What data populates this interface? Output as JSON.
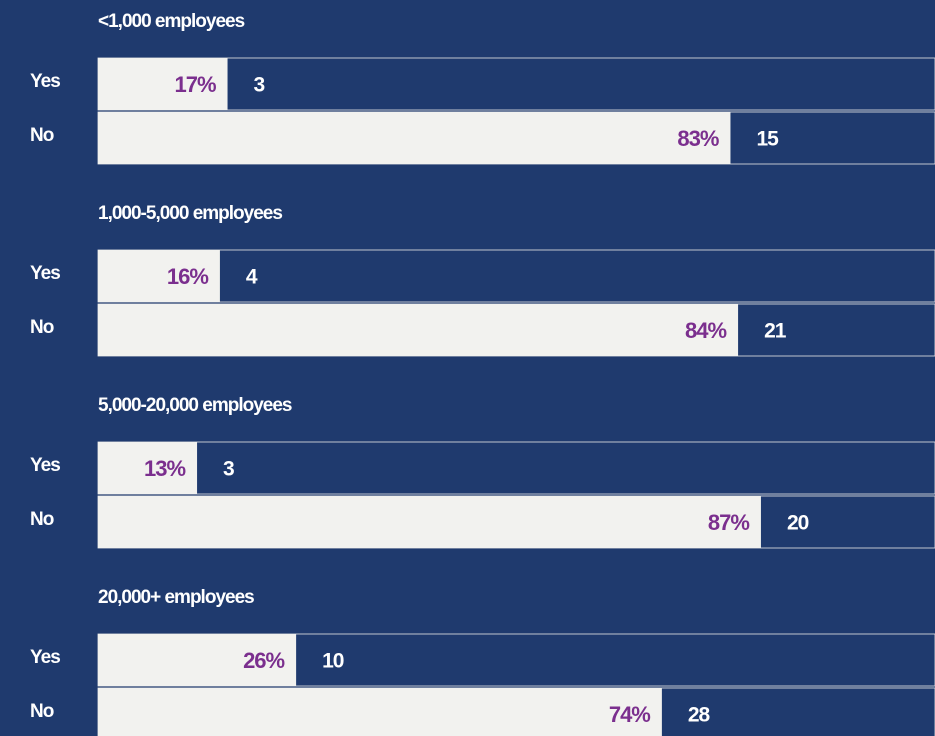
{
  "chart_data": [
    {
      "type": "bar",
      "title": "<1,000 employees",
      "categories": [
        "Yes",
        "No"
      ],
      "values": [
        17,
        83
      ],
      "value_labels": [
        "17%",
        "83%"
      ],
      "counts": [
        3,
        15
      ],
      "xlim": [
        0,
        100
      ],
      "color": "#f2f2ef",
      "label_color": "#7b2f8e"
    },
    {
      "type": "bar",
      "title": "1,000-5,000 employees",
      "categories": [
        "Yes",
        "No"
      ],
      "values": [
        16,
        84
      ],
      "value_labels": [
        "16%",
        "84%"
      ],
      "counts": [
        4,
        21
      ],
      "xlim": [
        0,
        100
      ],
      "color": "#f2f2ef",
      "label_color": "#7b2f8e"
    },
    {
      "type": "bar",
      "title": "5,000-20,000 employees",
      "categories": [
        "Yes",
        "No"
      ],
      "values": [
        13,
        87
      ],
      "value_labels": [
        "13%",
        "87%"
      ],
      "counts": [
        3,
        20
      ],
      "xlim": [
        0,
        100
      ],
      "color": "#f2f2ef",
      "label_color": "#7b2f8e"
    },
    {
      "type": "bar",
      "title": "20,000+ employees",
      "categories": [
        "Yes",
        "No"
      ],
      "values": [
        26,
        74
      ],
      "value_labels": [
        "26%",
        "74%"
      ],
      "counts": [
        10,
        28
      ],
      "xlim": [
        0,
        100
      ],
      "color": "#f2f2ef",
      "label_color": "#7b2f8e"
    }
  ]
}
